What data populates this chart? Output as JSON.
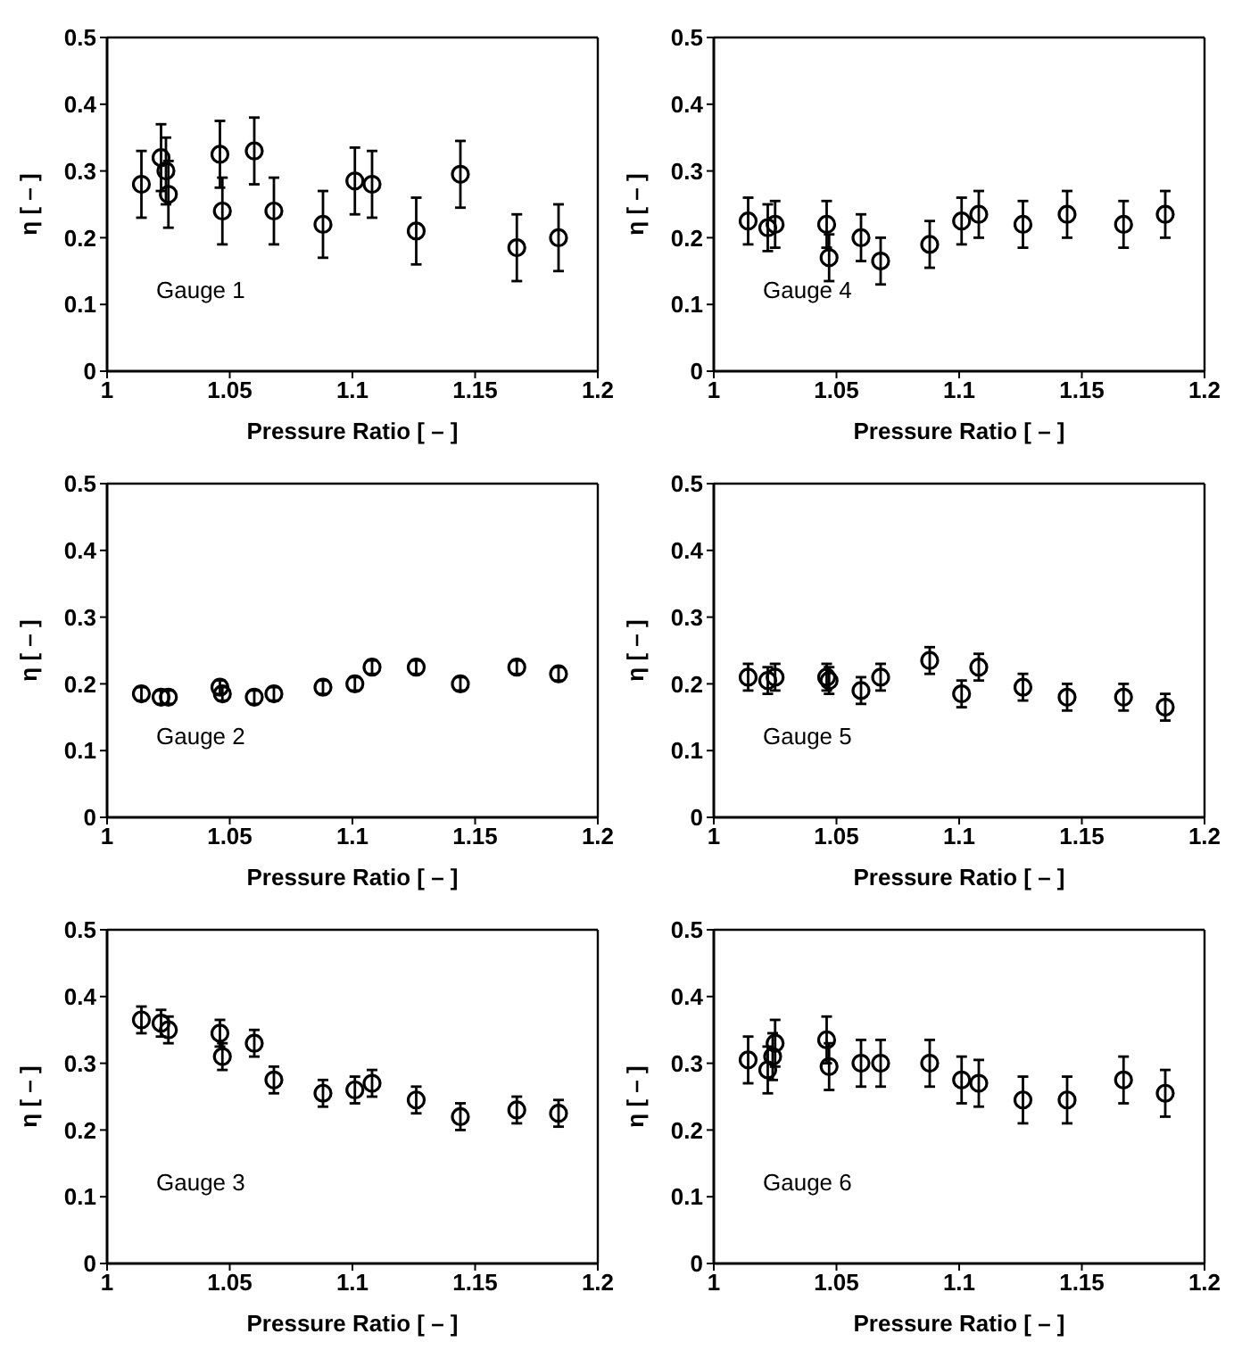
{
  "chart_data": [
    {
      "type": "scatter",
      "annotations": [
        "Gauge 1"
      ],
      "xlabel": "Pressure Ratio [ – ]",
      "ylabel": "η [ – ]",
      "x": [
        1.014,
        1.022,
        1.024,
        1.025,
        1.046,
        1.047,
        1.06,
        1.068,
        1.088,
        1.101,
        1.108,
        1.126,
        1.144,
        1.167,
        1.184
      ],
      "values": [
        0.28,
        0.32,
        0.3,
        0.265,
        0.325,
        0.24,
        0.33,
        0.24,
        0.22,
        0.285,
        0.28,
        0.21,
        0.295,
        0.185,
        0.2
      ],
      "errors": [
        0.05,
        0.05,
        0.05,
        0.05,
        0.05,
        0.05,
        0.05,
        0.05,
        0.05,
        0.05,
        0.05,
        0.05,
        0.05,
        0.05,
        0.05
      ],
      "color": "#000000",
      "marker": "circle",
      "xlim": [
        1,
        1.2
      ],
      "xticks": [
        1,
        1.05,
        1.1,
        1.15,
        1.2
      ],
      "ylim": [
        0,
        0.5
      ],
      "yticks": [
        0,
        0.1,
        0.2,
        0.3,
        0.4,
        0.5
      ],
      "grid": false
    },
    {
      "type": "scatter",
      "annotations": [
        "Gauge 4"
      ],
      "xlabel": "Pressure Ratio [ – ]",
      "ylabel": "η [ – ]",
      "x": [
        1.014,
        1.022,
        1.024,
        1.025,
        1.046,
        1.047,
        1.06,
        1.068,
        1.088,
        1.101,
        1.108,
        1.126,
        1.144,
        1.167,
        1.184
      ],
      "values": [
        0.225,
        0.215,
        null,
        0.22,
        0.22,
        0.17,
        0.2,
        0.165,
        0.19,
        0.225,
        0.235,
        0.22,
        0.235,
        0.22,
        0.235
      ],
      "errors": [
        0.035,
        0.035,
        null,
        0.035,
        0.035,
        0.035,
        0.035,
        0.035,
        0.035,
        0.035,
        0.035,
        0.035,
        0.035,
        0.035,
        0.035
      ],
      "color": "#000000",
      "marker": "circle",
      "xlim": [
        1,
        1.2
      ],
      "xticks": [
        1,
        1.05,
        1.1,
        1.15,
        1.2
      ],
      "ylim": [
        0,
        0.5
      ],
      "yticks": [
        0,
        0.1,
        0.2,
        0.3,
        0.4,
        0.5
      ],
      "grid": false
    },
    {
      "type": "scatter",
      "annotations": [
        "Gauge 2"
      ],
      "xlabel": "Pressure Ratio [ – ]",
      "ylabel": "η [ – ]",
      "x": [
        1.014,
        1.022,
        1.024,
        1.025,
        1.046,
        1.047,
        1.06,
        1.068,
        1.088,
        1.101,
        1.108,
        1.126,
        1.144,
        1.167,
        1.184
      ],
      "values": [
        0.185,
        0.18,
        null,
        0.18,
        0.195,
        0.185,
        0.18,
        0.185,
        0.195,
        0.2,
        0.225,
        0.225,
        0.2,
        0.225,
        0.215
      ],
      "errors": [
        0.01,
        0.01,
        null,
        0.01,
        0.01,
        0.01,
        0.01,
        0.01,
        0.01,
        0.01,
        0.01,
        0.01,
        0.01,
        0.01,
        0.01
      ],
      "color": "#000000",
      "marker": "circle",
      "xlim": [
        1,
        1.2
      ],
      "xticks": [
        1,
        1.05,
        1.1,
        1.15,
        1.2
      ],
      "ylim": [
        0,
        0.5
      ],
      "yticks": [
        0,
        0.1,
        0.2,
        0.3,
        0.4,
        0.5
      ],
      "grid": false
    },
    {
      "type": "scatter",
      "annotations": [
        "Gauge 5"
      ],
      "xlabel": "Pressure Ratio [ – ]",
      "ylabel": "η [ – ]",
      "x": [
        1.014,
        1.022,
        1.024,
        1.025,
        1.046,
        1.047,
        1.06,
        1.068,
        1.088,
        1.101,
        1.108,
        1.126,
        1.144,
        1.167,
        1.184
      ],
      "values": [
        0.21,
        0.205,
        null,
        0.21,
        0.21,
        0.205,
        0.19,
        0.21,
        0.235,
        0.185,
        0.225,
        0.195,
        0.18,
        0.18,
        0.165
      ],
      "errors": [
        0.02,
        0.02,
        null,
        0.02,
        0.02,
        0.02,
        0.02,
        0.02,
        0.02,
        0.02,
        0.02,
        0.02,
        0.02,
        0.02,
        0.02
      ],
      "color": "#000000",
      "marker": "circle",
      "xlim": [
        1,
        1.2
      ],
      "xticks": [
        1,
        1.05,
        1.1,
        1.15,
        1.2
      ],
      "ylim": [
        0,
        0.5
      ],
      "yticks": [
        0,
        0.1,
        0.2,
        0.3,
        0.4,
        0.5
      ],
      "grid": false
    },
    {
      "type": "scatter",
      "annotations": [
        "Gauge 3"
      ],
      "xlabel": "Pressure Ratio [ – ]",
      "ylabel": "η [ – ]",
      "x": [
        1.014,
        1.022,
        1.024,
        1.025,
        1.046,
        1.047,
        1.06,
        1.068,
        1.088,
        1.101,
        1.108,
        1.126,
        1.144,
        1.167,
        1.184
      ],
      "values": [
        0.365,
        0.36,
        null,
        0.35,
        0.345,
        0.31,
        0.33,
        0.275,
        0.255,
        0.26,
        0.27,
        0.245,
        0.22,
        0.23,
        0.225
      ],
      "errors": [
        0.02,
        0.02,
        null,
        0.02,
        0.02,
        0.02,
        0.02,
        0.02,
        0.02,
        0.02,
        0.02,
        0.02,
        0.02,
        0.02,
        0.02
      ],
      "color": "#000000",
      "marker": "circle",
      "xlim": [
        1,
        1.2
      ],
      "xticks": [
        1,
        1.05,
        1.1,
        1.15,
        1.2
      ],
      "ylim": [
        0,
        0.5
      ],
      "yticks": [
        0,
        0.1,
        0.2,
        0.3,
        0.4,
        0.5
      ],
      "grid": false
    },
    {
      "type": "scatter",
      "annotations": [
        "Gauge 6"
      ],
      "xlabel": "Pressure Ratio [ – ]",
      "ylabel": "η [ – ]",
      "x": [
        1.014,
        1.022,
        1.024,
        1.025,
        1.046,
        1.047,
        1.06,
        1.068,
        1.088,
        1.101,
        1.108,
        1.126,
        1.144,
        1.167,
        1.184
      ],
      "values": [
        0.305,
        0.29,
        0.31,
        0.33,
        0.335,
        0.295,
        0.3,
        0.3,
        0.3,
        0.275,
        0.27,
        0.245,
        0.245,
        0.275,
        0.255
      ],
      "errors": [
        0.035,
        0.035,
        0.035,
        0.035,
        0.035,
        0.035,
        0.035,
        0.035,
        0.035,
        0.035,
        0.035,
        0.035,
        0.035,
        0.035,
        0.035
      ],
      "color": "#000000",
      "marker": "circle",
      "xlim": [
        1,
        1.2
      ],
      "xticks": [
        1,
        1.05,
        1.1,
        1.15,
        1.2
      ],
      "ylim": [
        0,
        0.5
      ],
      "yticks": [
        0,
        0.1,
        0.2,
        0.3,
        0.4,
        0.5
      ],
      "grid": false
    }
  ]
}
